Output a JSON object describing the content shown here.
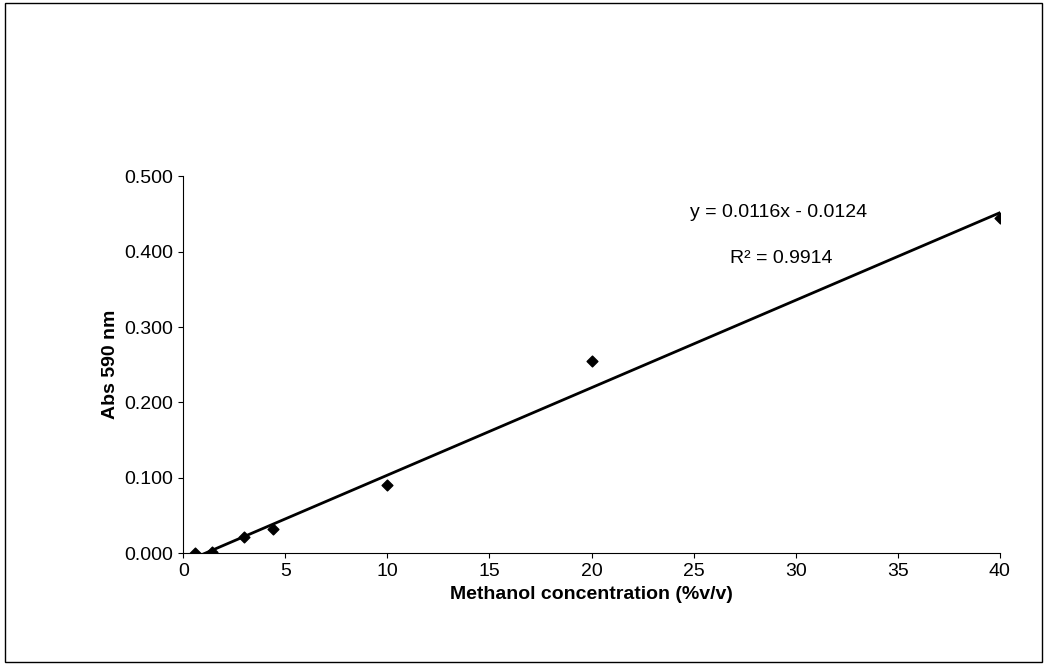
{
  "chart_data": {
    "type": "scatter",
    "x_label": "Methanol concentration (%v/v)",
    "y_label": "Abs 590 nm",
    "x": [
      0.6,
      1.4,
      3.0,
      4.4,
      10,
      20,
      40
    ],
    "values": [
      0.0,
      0.002,
      0.022,
      0.032,
      0.09,
      0.255,
      0.445
    ],
    "color": "#000000",
    "marker": "diamond",
    "trendline": {
      "slope": 0.0116,
      "intercept": -0.0124,
      "color": "#000000"
    },
    "annotations": [
      "y = 0.0116x - 0.0124",
      "R² = 0.9914"
    ],
    "xlim": [
      0,
      40
    ],
    "xticks": [
      0,
      5,
      10,
      15,
      20,
      25,
      30,
      35,
      40
    ],
    "ylim": [
      0,
      0.5
    ],
    "yticks": [
      {
        "value": 0,
        "label": "0.000"
      },
      {
        "value": 0.1,
        "label": "0.100"
      },
      {
        "value": 0.2,
        "label": "0.200"
      },
      {
        "value": 0.3,
        "label": "0.300"
      },
      {
        "value": 0.4,
        "label": "0.400"
      },
      {
        "value": 0.5,
        "label": "0.500"
      }
    ],
    "grid": false
  }
}
